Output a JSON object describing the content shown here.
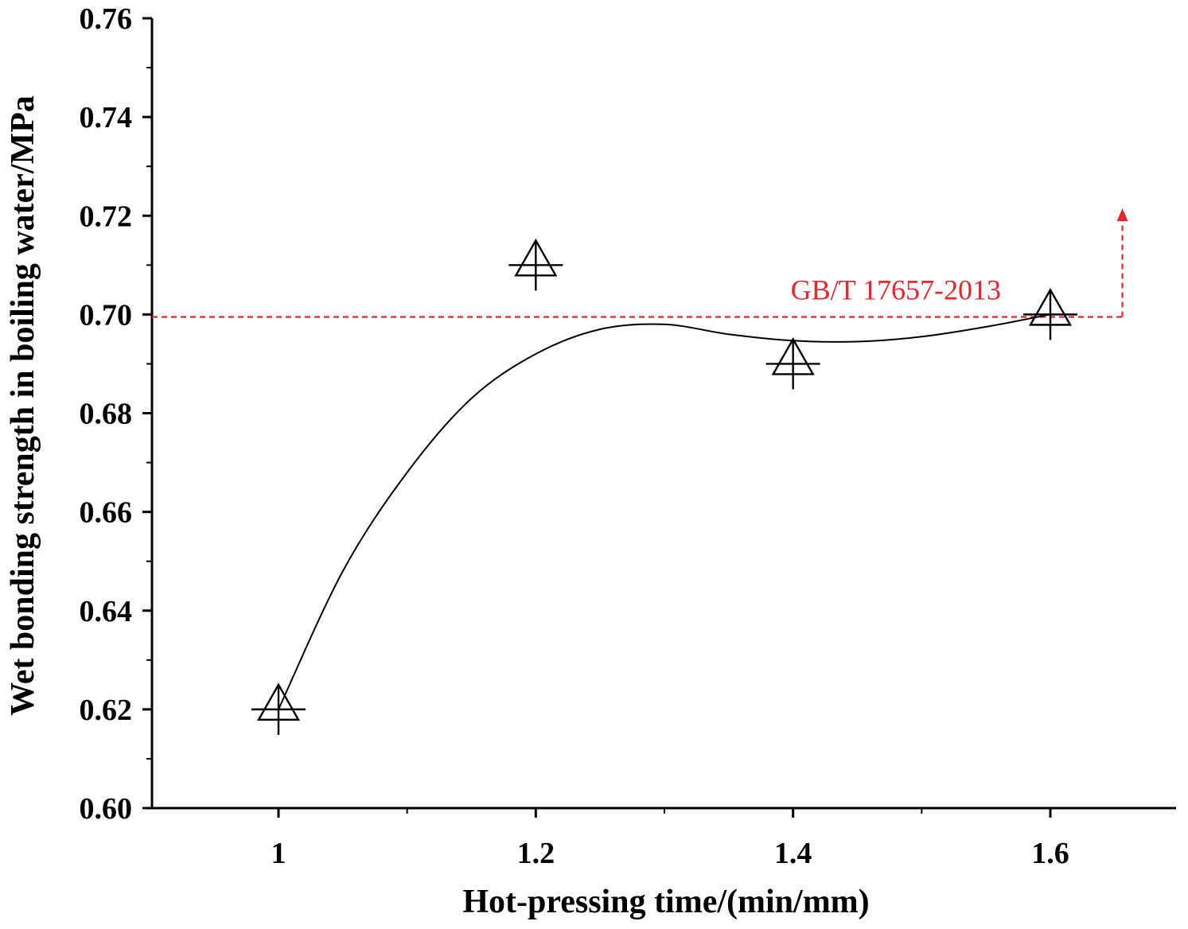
{
  "chart_data": {
    "type": "scatter",
    "title": "",
    "xlabel": "Hot-pressing time/(min/mm)",
    "ylabel": "Wet bonding strength in boiling water/MPa",
    "xlim": [
      0.9,
      1.7
    ],
    "ylim": [
      0.6,
      0.76
    ],
    "x_ticks": [
      1,
      1.2,
      1.4,
      1.6
    ],
    "x_tick_labels": [
      "1",
      "1.2",
      "1.4",
      "1.6"
    ],
    "y_ticks": [
      0.6,
      0.62,
      0.64,
      0.66,
      0.68,
      0.7,
      0.72,
      0.74,
      0.76
    ],
    "y_tick_labels": [
      "0.60",
      "0.62",
      "0.64",
      "0.66",
      "0.68",
      "0.70",
      "0.72",
      "0.74",
      "0.76"
    ],
    "grid": false,
    "series": [
      {
        "marker": "triangle-with-cross",
        "points": [
          {
            "x": 1.0,
            "y": 0.62
          },
          {
            "x": 1.2,
            "y": 0.71
          },
          {
            "x": 1.4,
            "y": 0.69
          },
          {
            "x": 1.6,
            "y": 0.7
          }
        ]
      },
      {
        "style": "smooth-line",
        "color": "#000000",
        "points": [
          {
            "x": 1.0,
            "y": 0.62
          },
          {
            "x": 1.05,
            "y": 0.648
          },
          {
            "x": 1.1,
            "y": 0.668
          },
          {
            "x": 1.15,
            "y": 0.683
          },
          {
            "x": 1.2,
            "y": 0.692
          },
          {
            "x": 1.25,
            "y": 0.697
          },
          {
            "x": 1.3,
            "y": 0.698
          },
          {
            "x": 1.35,
            "y": 0.696
          },
          {
            "x": 1.4,
            "y": 0.6947
          },
          {
            "x": 1.45,
            "y": 0.6945
          },
          {
            "x": 1.5,
            "y": 0.6955
          },
          {
            "x": 1.55,
            "y": 0.6975
          },
          {
            "x": 1.6,
            "y": 0.7
          }
        ]
      }
    ],
    "reference_line": {
      "label": "GB/T 17657-2013",
      "y": 0.6995,
      "x_end": 1.656,
      "arrow_to_y": 0.7215,
      "color": "#e8252b",
      "style": "dashed"
    }
  }
}
